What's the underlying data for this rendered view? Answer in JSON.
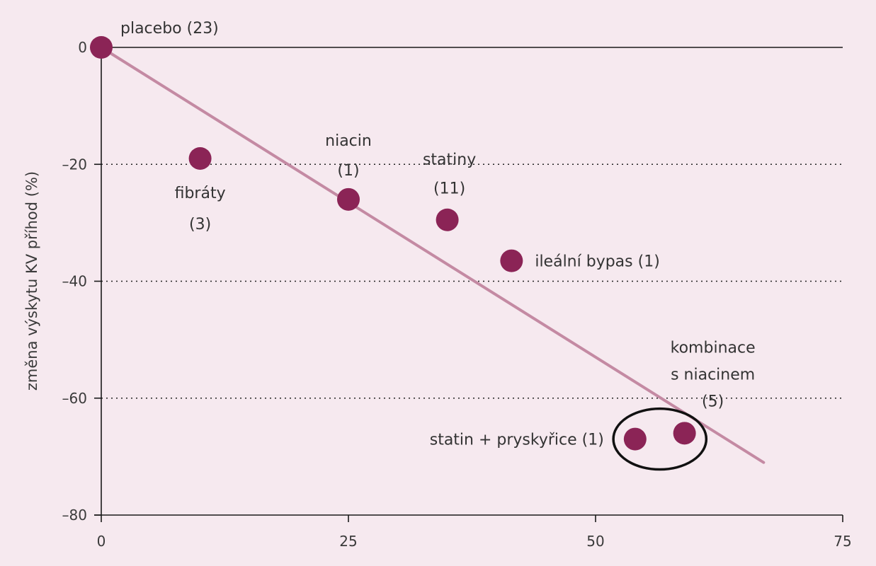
{
  "chart_data": {
    "type": "scatter",
    "title": "",
    "xlabel": "",
    "ylabel": "změna výskytu KV příhod (%)",
    "xlim": [
      0,
      75
    ],
    "ylim": [
      -80,
      0
    ],
    "x_ticks": [
      0,
      25,
      50,
      75
    ],
    "y_ticks": [
      0,
      -20,
      -40,
      -60,
      -80
    ],
    "x_tick_labels": [
      "0",
      "25",
      "50",
      "75"
    ],
    "y_tick_labels": [
      "0",
      "–20",
      "–40",
      "–60",
      "–80"
    ],
    "grid": "dotted horizontal at -20, -40, -60",
    "points": [
      {
        "name": "placebo (23)",
        "label_lines": [
          "placebo (23)"
        ],
        "x": 0,
        "y": 0
      },
      {
        "name": "fibráty (3)",
        "label_lines": [
          "fibráty",
          "(3)"
        ],
        "x": 10,
        "y": -19
      },
      {
        "name": "niacin (1)",
        "label_lines": [
          "niacin",
          "(1)"
        ],
        "x": 25,
        "y": -26
      },
      {
        "name": "statiny (11)",
        "label_lines": [
          "statiny",
          "(11)"
        ],
        "x": 35,
        "y": -29.5
      },
      {
        "name": "ileální bypas (1)",
        "label_lines": [
          "ileální bypas (1)"
        ],
        "x": 41.5,
        "y": -36.5
      },
      {
        "name": "statin + pryskyřice (1)",
        "label_lines": [
          "statin + pryskyřice (1)"
        ],
        "x": 54,
        "y": -67
      },
      {
        "name": "kombinace s niacinem (5)",
        "label_lines": [
          "kombinace",
          "s niacinem",
          "(5)"
        ],
        "x": 59,
        "y": -66
      }
    ],
    "trend_line": {
      "x": [
        0,
        67
      ],
      "y": [
        0,
        -71
      ]
    },
    "highlight_ellipse": {
      "x_center": 56.5,
      "y_center": -67,
      "x_radius": 4.7,
      "y_radius": 5.2
    },
    "colors": {
      "point": "#8b2456",
      "trend": "#c48aa3",
      "background": "#f6e9ef",
      "axis": "#1a1a1a"
    }
  }
}
